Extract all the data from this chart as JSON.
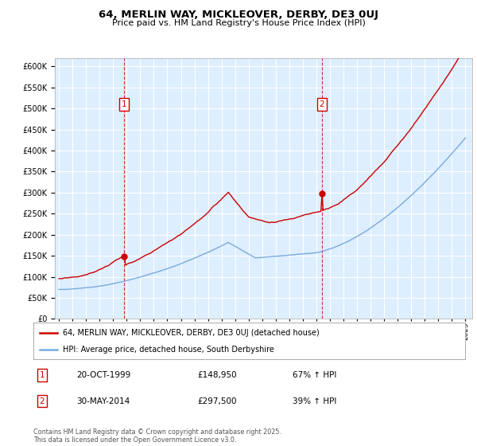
{
  "title": "64, MERLIN WAY, MICKLEOVER, DERBY, DE3 0UJ",
  "subtitle": "Price paid vs. HM Land Registry's House Price Index (HPI)",
  "legend_line1": "64, MERLIN WAY, MICKLEOVER, DERBY, DE3 0UJ (detached house)",
  "legend_line2": "HPI: Average price, detached house, South Derbyshire",
  "footnote": "Contains HM Land Registry data © Crown copyright and database right 2025.\nThis data is licensed under the Open Government Licence v3.0.",
  "sale1_label": "1",
  "sale1_date": "20-OCT-1999",
  "sale1_price": "£148,950",
  "sale1_hpi": "67% ↑ HPI",
  "sale1_year": 1999.8,
  "sale1_value": 148950,
  "sale2_label": "2",
  "sale2_date": "30-MAY-2014",
  "sale2_price": "£297,500",
  "sale2_hpi": "39% ↑ HPI",
  "sale2_year": 2014.4,
  "sale2_value": 297500,
  "red_color": "#cc0000",
  "blue_color": "#7aaadd",
  "plot_bg_color": "#ddeeff",
  "grid_color": "#ffffff",
  "ylim": [
    0,
    620000
  ],
  "xlim_start": 1994.7,
  "xlim_end": 2025.5,
  "yticks": [
    0,
    50000,
    100000,
    150000,
    200000,
    250000,
    300000,
    350000,
    400000,
    450000,
    500000,
    550000,
    600000
  ],
  "xticks": [
    1995,
    1996,
    1997,
    1998,
    1999,
    2000,
    2001,
    2002,
    2003,
    2004,
    2005,
    2006,
    2007,
    2008,
    2009,
    2010,
    2011,
    2012,
    2013,
    2014,
    2015,
    2016,
    2017,
    2018,
    2019,
    2020,
    2021,
    2022,
    2023,
    2024,
    2025
  ]
}
